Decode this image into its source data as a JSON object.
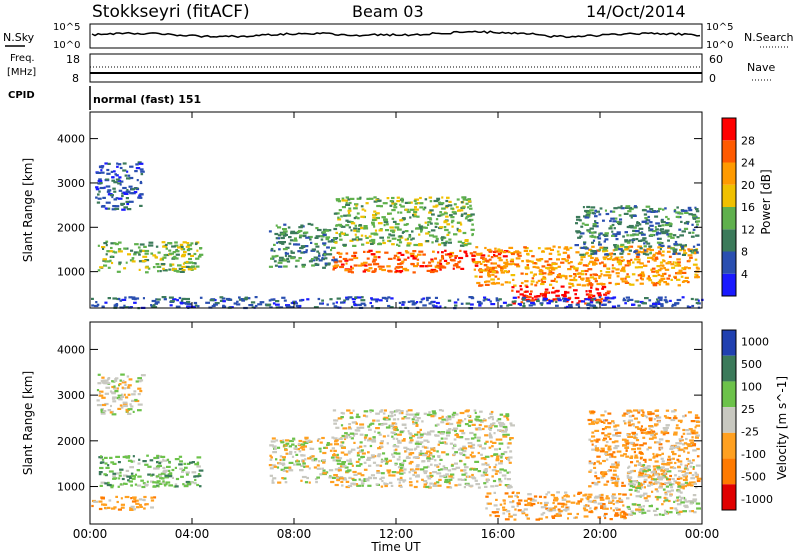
{
  "header": {
    "station": "Stokkseyri (fitACF)",
    "beam": "Beam 03",
    "date": "14/Oct/2014"
  },
  "noise_panel": {
    "left_label": "N.Sky",
    "right_label": "N.Search",
    "ticks": [
      "10^5",
      "10^0"
    ]
  },
  "freq_panel": {
    "left_label_1": "Freq.",
    "left_label_2": "[MHz]",
    "left_ticks": [
      "18",
      "8"
    ],
    "right_label": "Nave",
    "right_ticks": [
      "60",
      "0"
    ]
  },
  "cpid_panel": {
    "label": "CPID",
    "value": "normal (fast) 151"
  },
  "colors": {
    "power": [
      "#1a1aff",
      "#2a4fb0",
      "#3b7a5a",
      "#5fb04d",
      "#f0c000",
      "#ff9a00",
      "#ff5a00",
      "#ff0000"
    ],
    "velocity": [
      "#2040b0",
      "#3b7a5a",
      "#6cc24a",
      "#c8c8c0",
      "#ffa020",
      "#ff7a00",
      "#e00000"
    ]
  },
  "chart_data": [
    {
      "type": "heatmap",
      "title": "",
      "xlabel": "",
      "ylabel": "Slant Range [km]",
      "x_ticks": [
        "00:00",
        "04:00",
        "08:00",
        "12:00",
        "16:00",
        "20:00",
        "00:00"
      ],
      "y_ticks": [
        "1000",
        "2000",
        "3000",
        "4000"
      ],
      "ylim": [
        180,
        4600
      ],
      "colorbar": {
        "label": "Power [dB]",
        "ticks": [
          "4",
          "8",
          "12",
          "16",
          "20",
          "24",
          "28"
        ],
        "range": [
          0,
          30
        ]
      },
      "regions": [
        {
          "x": [
            0.3,
            4.3
          ],
          "y": [
            1000,
            1700
          ],
          "power": 14
        },
        {
          "x": [
            0.2,
            2.0
          ],
          "y": [
            2400,
            3500
          ],
          "power": 6
        },
        {
          "x": [
            7.0,
            9.6
          ],
          "y": [
            1100,
            2100
          ],
          "power": 9
        },
        {
          "x": [
            9.5,
            15.0
          ],
          "y": [
            1600,
            2700
          ],
          "power": 14
        },
        {
          "x": [
            9.5,
            16.5
          ],
          "y": [
            1000,
            1500
          ],
          "power": 24
        },
        {
          "x": [
            15.0,
            23.8
          ],
          "y": [
            700,
            1600
          ],
          "power": 20
        },
        {
          "x": [
            16.5,
            20.5
          ],
          "y": [
            300,
            700
          ],
          "power": 27
        },
        {
          "x": [
            19.0,
            23.8
          ],
          "y": [
            1400,
            2500
          ],
          "power": 10
        },
        {
          "x": [
            0.0,
            24.0
          ],
          "y": [
            200,
            450
          ],
          "power": 6
        }
      ]
    },
    {
      "type": "heatmap",
      "title": "",
      "xlabel": "Time UT",
      "ylabel": "Slant Range [km]",
      "x_ticks": [
        "00:00",
        "04:00",
        "08:00",
        "12:00",
        "16:00",
        "20:00",
        "00:00"
      ],
      "y_ticks": [
        "1000",
        "2000",
        "3000",
        "4000"
      ],
      "ylim": [
        180,
        4600
      ],
      "colorbar": {
        "label": "Velocity [m s^-1]",
        "ticks": [
          "1000",
          "500",
          "100",
          "25",
          "-25",
          "-100",
          "-500",
          "-1000"
        ],
        "range": [
          -1000,
          1000
        ]
      },
      "regions": [
        {
          "x": [
            0.3,
            4.3
          ],
          "y": [
            1000,
            1700
          ],
          "velocity": 150
        },
        {
          "x": [
            0.0,
            2.5
          ],
          "y": [
            500,
            800
          ],
          "velocity": -200
        },
        {
          "x": [
            0.2,
            2.0
          ],
          "y": [
            2600,
            3500
          ],
          "velocity": 0
        },
        {
          "x": [
            7.0,
            9.6
          ],
          "y": [
            1100,
            2100
          ],
          "velocity": 0
        },
        {
          "x": [
            9.5,
            16.5
          ],
          "y": [
            1000,
            2700
          ],
          "velocity": 0
        },
        {
          "x": [
            15.5,
            21.0
          ],
          "y": [
            300,
            900
          ],
          "velocity": -300
        },
        {
          "x": [
            19.5,
            23.8
          ],
          "y": [
            1000,
            2700
          ],
          "velocity": -150
        },
        {
          "x": [
            21.0,
            23.8
          ],
          "y": [
            400,
            1500
          ],
          "velocity": 80
        }
      ]
    }
  ]
}
